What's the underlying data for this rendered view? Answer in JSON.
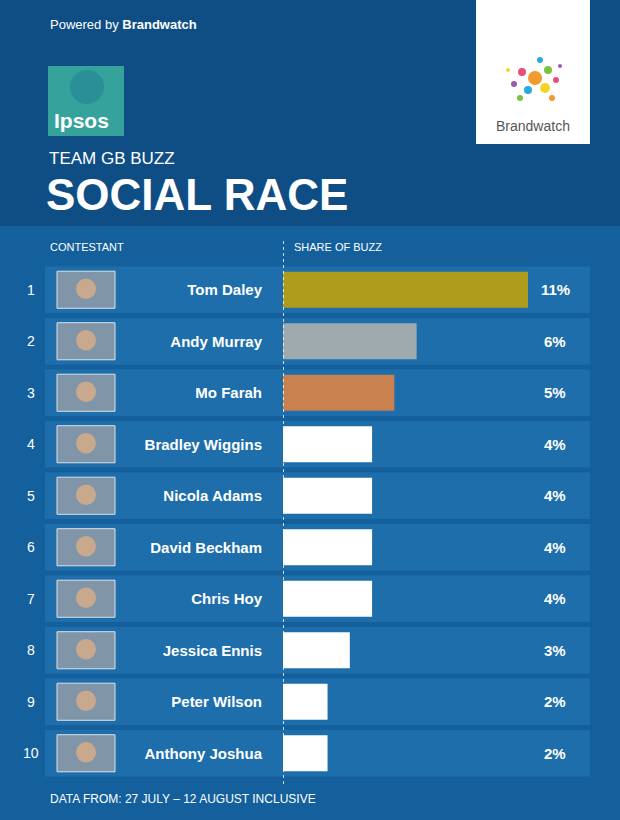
{
  "header": {
    "powered_by": "Powered by",
    "brand": "Brandwatch",
    "logo": "Ipsos"
  },
  "chart_data": {
    "type": "bar",
    "orientation": "horizontal",
    "title": "SOCIAL RACE",
    "subtitle": "TEAM GB BUZZ",
    "category_heading": "CONTESTANT",
    "value_heading": "SHARE OF BUZZ",
    "ranks": [
      1,
      2,
      3,
      4,
      5,
      6,
      7,
      8,
      9,
      10
    ],
    "categories": [
      "Tom Daley",
      "Andy Murray",
      "Mo Farah",
      "Bradley Wiggins",
      "Nicola Adams",
      "David Beckham",
      "Chris Hoy",
      "Jessica Ennis",
      "Peter Wilson",
      "Anthony Joshua"
    ],
    "values": [
      11,
      6,
      5,
      4,
      4,
      4,
      4,
      3,
      2,
      2
    ],
    "value_labels": [
      "11%",
      "6%",
      "5%",
      "4%",
      "4%",
      "4%",
      "4%",
      "3%",
      "2%",
      "2%"
    ],
    "colors": [
      "#b09c1c",
      "#9eaaae",
      "#c8814f",
      "#ffffff",
      "#ffffff",
      "#ffffff",
      "#ffffff",
      "#ffffff",
      "#ffffff",
      "#ffffff"
    ],
    "data_labels": true,
    "xlim": [
      0,
      11
    ],
    "xticks": [],
    "tick_labels": "y",
    "grid": false
  },
  "footer": "DATA FROM: 27 JULY – 12 AUGUST INCLUSIVE"
}
